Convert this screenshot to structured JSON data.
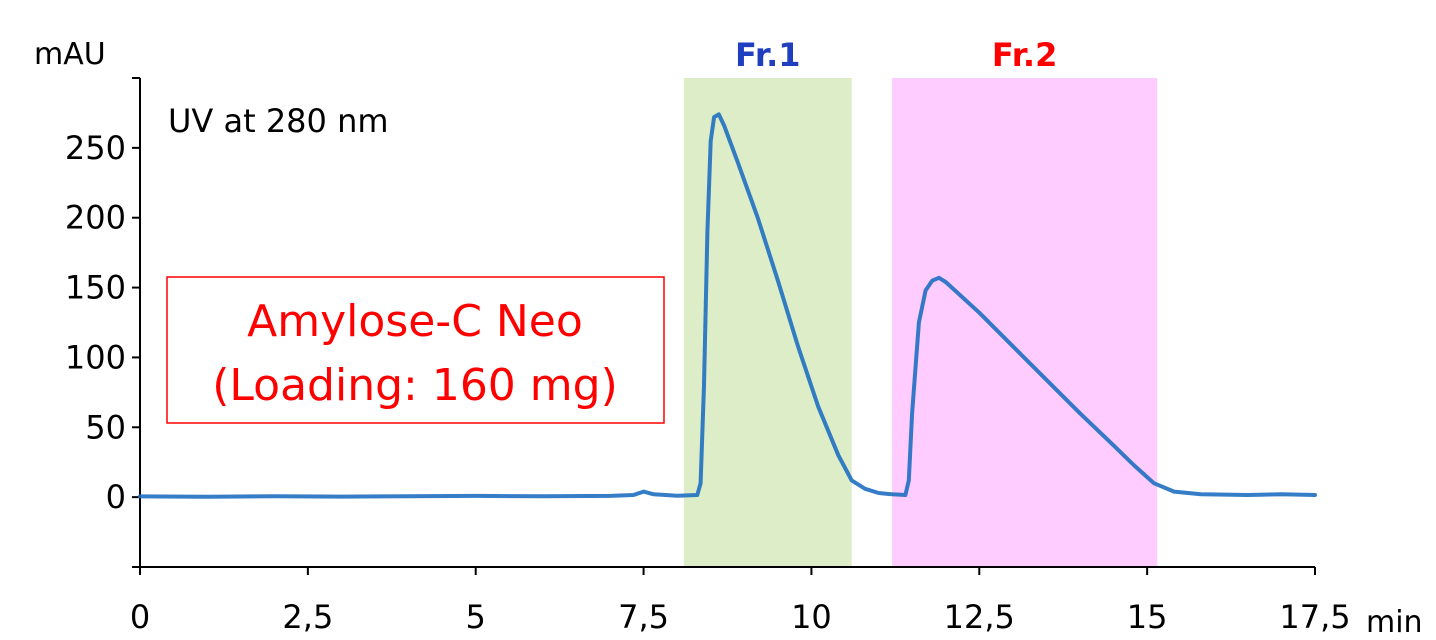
{
  "chart_data": {
    "type": "line",
    "title": "",
    "xlabel": "min",
    "ylabel": "mAU",
    "xlim": [
      0,
      17.5
    ],
    "ylim": [
      -50,
      300
    ],
    "x_ticks": [
      0,
      2.5,
      5,
      7.5,
      10,
      12.5,
      15,
      17.5
    ],
    "x_tick_labels": [
      "0",
      "2,5",
      "5",
      "7,5",
      "10",
      "12,5",
      "15",
      "17,5"
    ],
    "y_ticks": [
      0,
      50,
      100,
      150,
      200,
      250
    ],
    "y_tick_labels": [
      "0",
      "50",
      "100",
      "150",
      "200",
      "250"
    ],
    "grid": false,
    "annotations": {
      "detector": "UV at 280 nm",
      "sample_line1": "Amylose-C Neo",
      "sample_line2": "(Loading: 160 mg)"
    },
    "fractions": [
      {
        "label": "Fr.1",
        "x_start": 8.1,
        "x_end": 10.6,
        "fill_color": "#dcedc8",
        "label_color": "#1f3fbf"
      },
      {
        "label": "Fr.2",
        "x_start": 11.2,
        "x_end": 15.15,
        "fill_color": "#ffccff",
        "label_color": "#ff0000"
      }
    ],
    "series": [
      {
        "color": "#1f6fc1",
        "points": [
          [
            0,
            0.5
          ],
          [
            1,
            0.3
          ],
          [
            2,
            0.6
          ],
          [
            3,
            0.4
          ],
          [
            4,
            0.6
          ],
          [
            5,
            0.9
          ],
          [
            6,
            0.6
          ],
          [
            7,
            0.9
          ],
          [
            7.35,
            1.5
          ],
          [
            7.5,
            4.0
          ],
          [
            7.65,
            2.0
          ],
          [
            8.0,
            1.0
          ],
          [
            8.3,
            1.5
          ],
          [
            8.35,
            10
          ],
          [
            8.4,
            80
          ],
          [
            8.45,
            190
          ],
          [
            8.5,
            255
          ],
          [
            8.55,
            272
          ],
          [
            8.62,
            274
          ],
          [
            8.7,
            266
          ],
          [
            8.9,
            240
          ],
          [
            9.2,
            200
          ],
          [
            9.5,
            155
          ],
          [
            9.8,
            108
          ],
          [
            10.1,
            65
          ],
          [
            10.4,
            30
          ],
          [
            10.6,
            12
          ],
          [
            10.8,
            6
          ],
          [
            11.0,
            3
          ],
          [
            11.2,
            2
          ],
          [
            11.4,
            1.5
          ],
          [
            11.45,
            12
          ],
          [
            11.5,
            60
          ],
          [
            11.6,
            125
          ],
          [
            11.7,
            148
          ],
          [
            11.8,
            155
          ],
          [
            11.9,
            157
          ],
          [
            12.0,
            154
          ],
          [
            12.5,
            132
          ],
          [
            13.0,
            108
          ],
          [
            13.5,
            84
          ],
          [
            14.0,
            60
          ],
          [
            14.5,
            37
          ],
          [
            14.8,
            23
          ],
          [
            15.1,
            10
          ],
          [
            15.4,
            4
          ],
          [
            15.8,
            2
          ],
          [
            16.5,
            1.5
          ],
          [
            17.0,
            2
          ],
          [
            17.5,
            1.5
          ]
        ]
      }
    ],
    "colors": {
      "axis": "#000000",
      "sample_text": "#ff0000",
      "sample_box_border": "#ff0000"
    }
  }
}
